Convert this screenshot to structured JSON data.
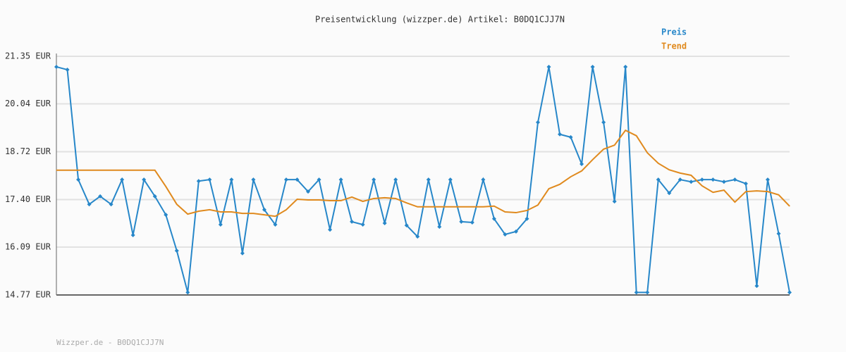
{
  "chart_data": {
    "type": "line",
    "title": "Preisentwicklung (wizzper.de) Artikel: B0DQ1CJJ7N",
    "footer": "Wizzper.de - B0DQ1CJJ7N",
    "ylim": [
      14.77,
      21.35
    ],
    "yticks": [
      {
        "value": 14.77,
        "label": "14.77 EUR"
      },
      {
        "value": 16.09,
        "label": "16.09 EUR"
      },
      {
        "value": 17.4,
        "label": "17.40 EUR"
      },
      {
        "value": 18.72,
        "label": "18.72 EUR"
      },
      {
        "value": 20.04,
        "label": "20.04 EUR"
      },
      {
        "value": 21.35,
        "label": "21.35 EUR"
      }
    ],
    "grid": true,
    "legend": "top-right",
    "series": [
      {
        "name": "Preis",
        "color": "#2787c9",
        "markers": true,
        "values": [
          21.06,
          20.98,
          17.95,
          17.27,
          17.49,
          17.27,
          17.95,
          16.42,
          17.95,
          17.49,
          16.98,
          15.99,
          14.84,
          17.91,
          17.95,
          16.71,
          17.95,
          15.92,
          17.95,
          17.12,
          16.71,
          17.95,
          17.95,
          17.62,
          17.95,
          16.57,
          17.95,
          16.79,
          16.71,
          17.95,
          16.75,
          17.95,
          16.69,
          16.38,
          17.95,
          16.65,
          17.95,
          16.79,
          16.77,
          17.95,
          16.87,
          16.44,
          16.52,
          16.87,
          19.53,
          21.06,
          19.2,
          19.12,
          18.38,
          21.06,
          19.53,
          17.35,
          21.06,
          14.84,
          14.84,
          17.95,
          17.58,
          17.95,
          17.89,
          17.95,
          17.95,
          17.89,
          17.95,
          17.84,
          15.02,
          17.95,
          16.46,
          14.84
        ]
      },
      {
        "name": "Trend",
        "color": "#e08a1e",
        "markers": false,
        "values": [
          18.21,
          18.21,
          18.21,
          18.21,
          18.21,
          18.21,
          18.21,
          18.21,
          18.21,
          18.21,
          17.76,
          17.27,
          17.0,
          17.08,
          17.12,
          17.06,
          17.06,
          17.02,
          17.02,
          16.98,
          16.94,
          17.12,
          17.41,
          17.39,
          17.39,
          17.37,
          17.37,
          17.47,
          17.35,
          17.43,
          17.45,
          17.43,
          17.31,
          17.2,
          17.2,
          17.2,
          17.2,
          17.2,
          17.2,
          17.2,
          17.22,
          17.06,
          17.04,
          17.1,
          17.25,
          17.7,
          17.82,
          18.03,
          18.19,
          18.5,
          18.79,
          18.9,
          19.31,
          19.16,
          18.69,
          18.4,
          18.22,
          18.13,
          18.07,
          17.78,
          17.6,
          17.66,
          17.33,
          17.62,
          17.64,
          17.62,
          17.53,
          17.22
        ]
      }
    ]
  }
}
